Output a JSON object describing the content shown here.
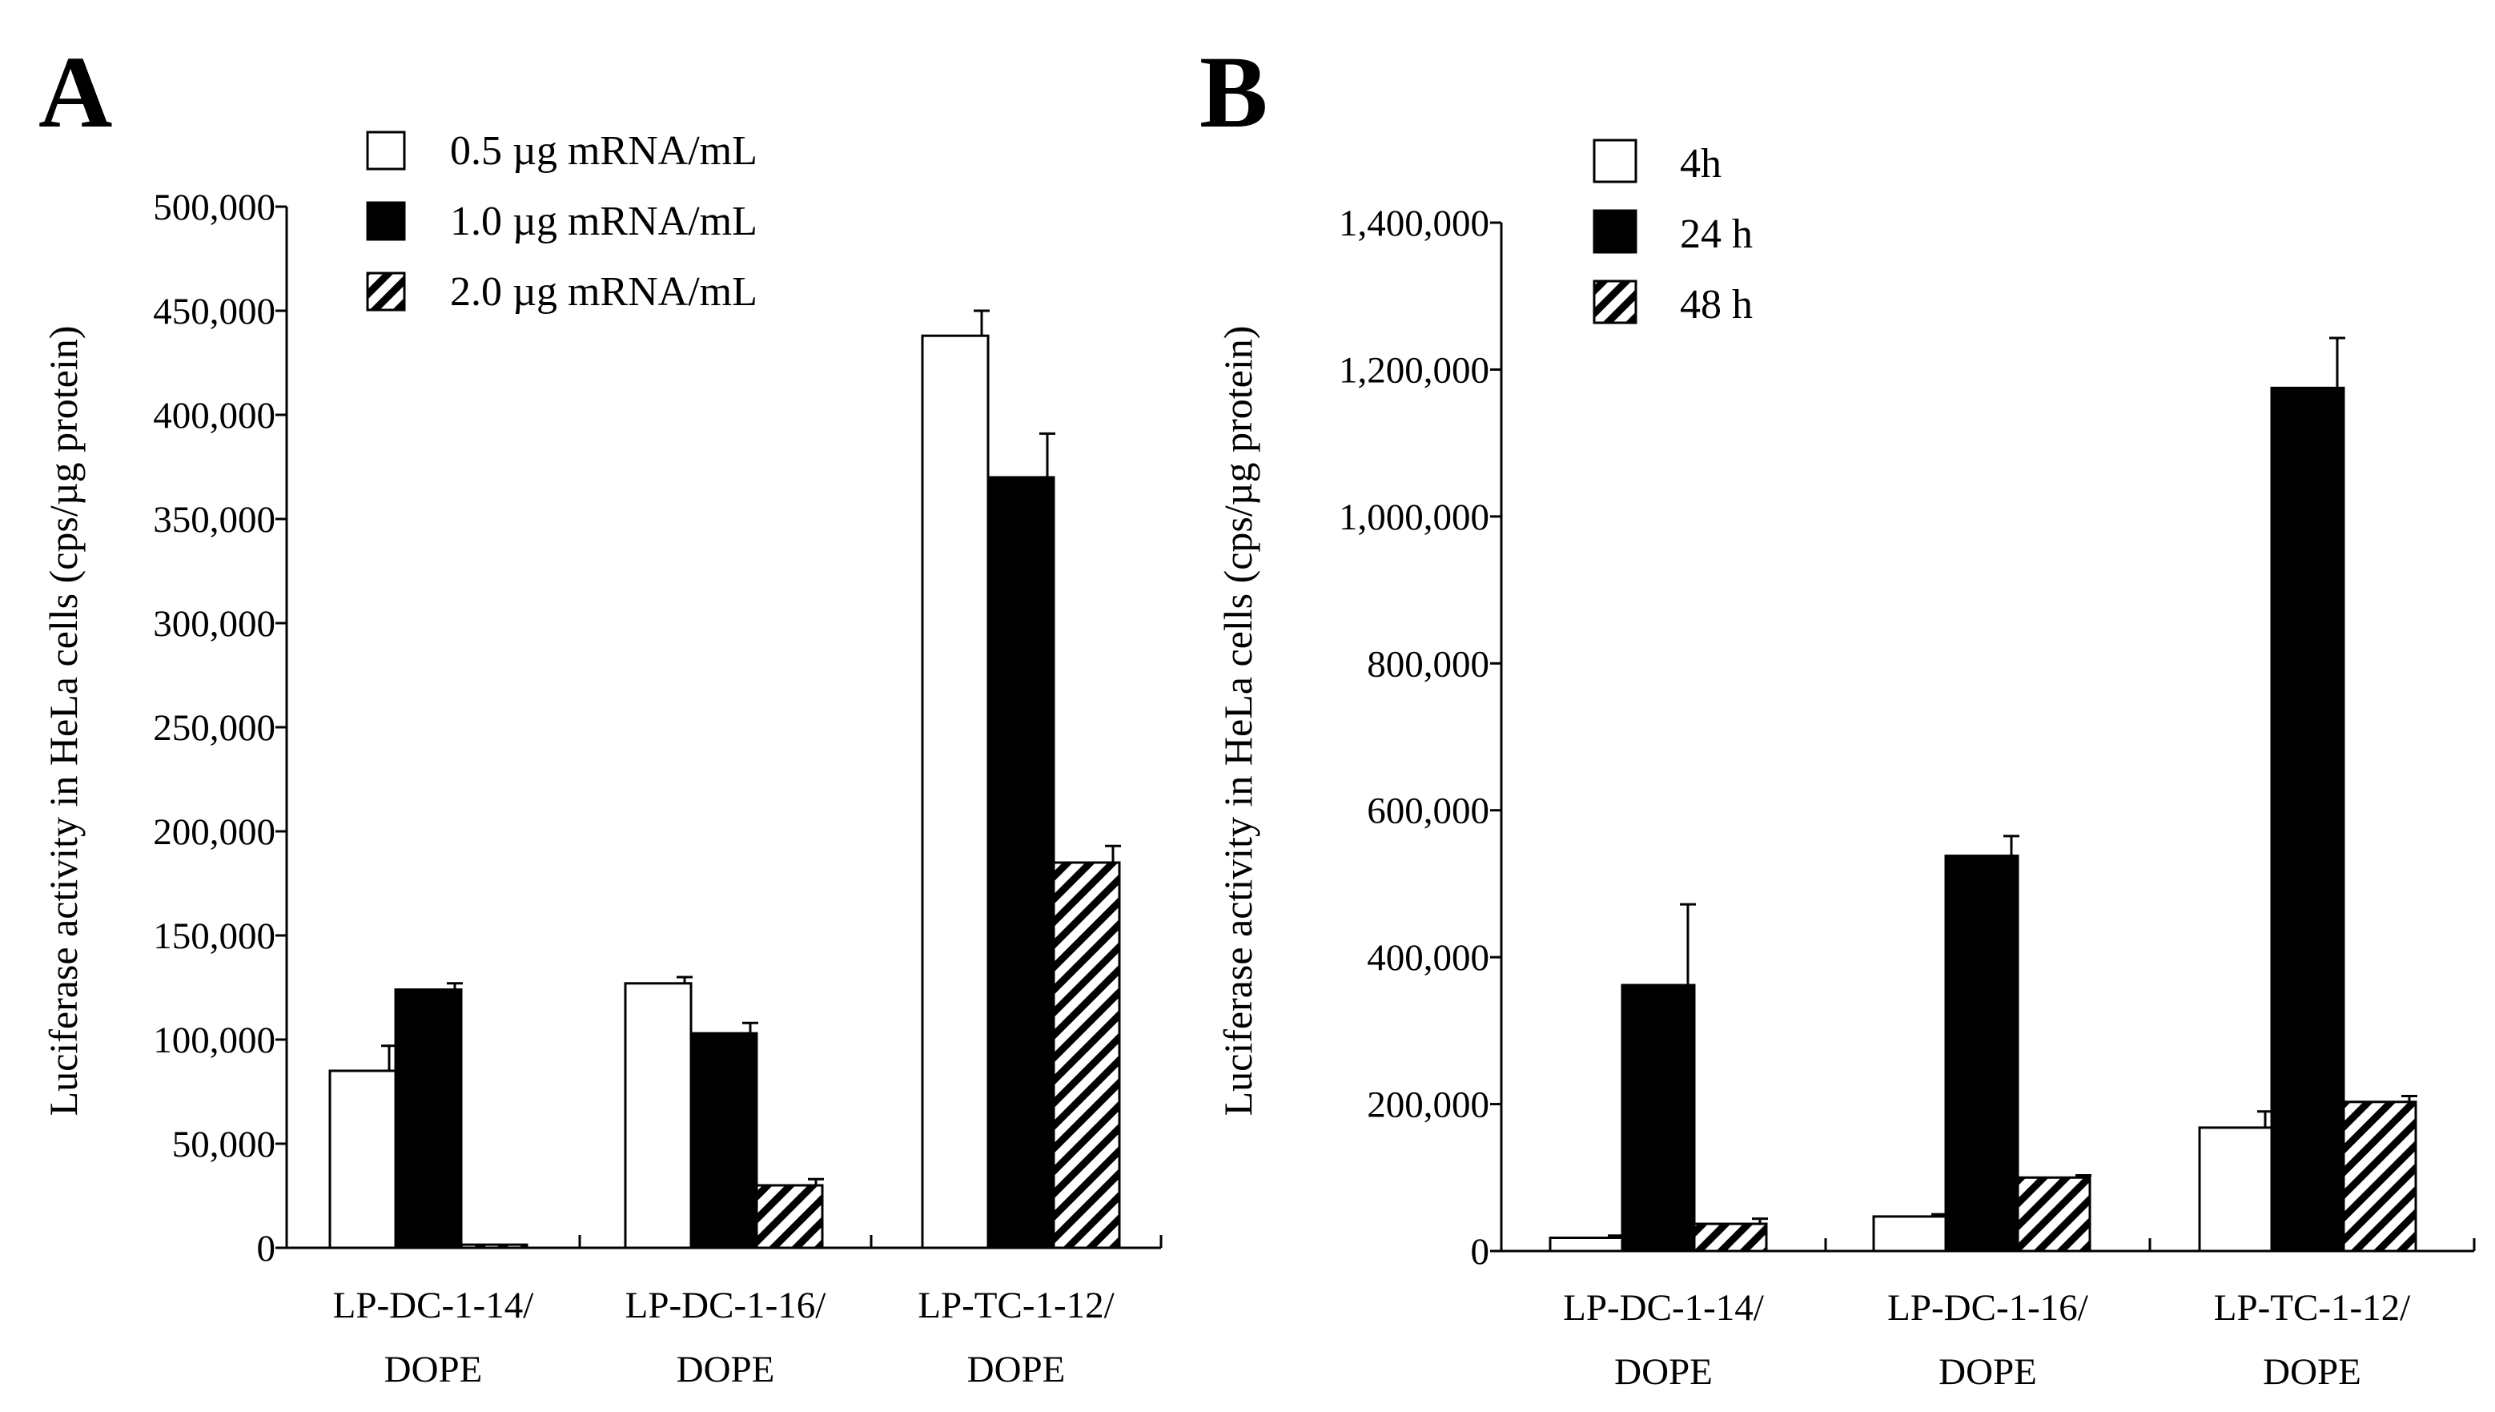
{
  "chart_data": [
    {
      "panel": "A",
      "type": "bar",
      "title": "",
      "xlabel": "",
      "ylabel": "Luciferase  activity  in HeLa cells  (cps/µg protein)",
      "ylim": [
        0,
        500000
      ],
      "yticks": [
        {
          "value": 0,
          "label": "0"
        },
        {
          "value": 50000,
          "label": "50,000"
        },
        {
          "value": 100000,
          "label": "100,000"
        },
        {
          "value": 150000,
          "label": "150,000"
        },
        {
          "value": 200000,
          "label": "200,000"
        },
        {
          "value": 250000,
          "label": "250,000"
        },
        {
          "value": 300000,
          "label": "300,000"
        },
        {
          "value": 350000,
          "label": "350,000"
        },
        {
          "value": 400000,
          "label": "400,000"
        },
        {
          "value": 450000,
          "label": "450,000"
        },
        {
          "value": 500000,
          "label": "500,000"
        }
      ],
      "categories": [
        {
          "line1": "LP-DC-1-14/",
          "line2": "DOPE"
        },
        {
          "line1": "LP-DC-1-16/",
          "line2": "DOPE"
        },
        {
          "line1": "LP-TC-1-12/",
          "line2": "DOPE"
        }
      ],
      "legend_position": "top-center",
      "series": [
        {
          "name": "0.5 µg mRNA/mL",
          "fill": "white",
          "values": [
            85000,
            127000,
            438000
          ],
          "errors": [
            12000,
            3000,
            12000
          ]
        },
        {
          "name": "1.0 µg mRNA/mL",
          "fill": "black",
          "values": [
            124000,
            103000,
            370000
          ],
          "errors": [
            3000,
            5000,
            21000
          ]
        },
        {
          "name": "2.0 µg mRNA/mL",
          "fill": "hatch",
          "values": [
            1500,
            30000,
            185000
          ],
          "errors": [
            0,
            3000,
            8000
          ]
        }
      ]
    },
    {
      "panel": "B",
      "type": "bar",
      "title": "",
      "xlabel": "",
      "ylabel": "Luciferase  activity  in HeLa cells  (cps/µg protein)",
      "ylim": [
        0,
        1400000
      ],
      "yticks": [
        {
          "value": 0,
          "label": "0"
        },
        {
          "value": 200000,
          "label": "200,000"
        },
        {
          "value": 400000,
          "label": "400,000"
        },
        {
          "value": 600000,
          "label": "600,000"
        },
        {
          "value": 800000,
          "label": "800,000"
        },
        {
          "value": 1000000,
          "label": "1,000,000"
        },
        {
          "value": 1200000,
          "label": "1,200,000"
        },
        {
          "value": 1400000,
          "label": "1,400,000"
        }
      ],
      "categories": [
        {
          "line1": "LP-DC-1-14/",
          "line2": "DOPE"
        },
        {
          "line1": "LP-DC-1-16/",
          "line2": "DOPE"
        },
        {
          "line1": "LP-TC-1-12/",
          "line2": "DOPE"
        }
      ],
      "legend_position": "top-left",
      "series": [
        {
          "name": "4h",
          "fill": "white",
          "values": [
            18000,
            47000,
            168000
          ],
          "errors": [
            3000,
            3000,
            22000
          ]
        },
        {
          "name": "24 h",
          "fill": "black",
          "values": [
            362000,
            538000,
            1175000
          ],
          "errors": [
            110000,
            27000,
            68000
          ]
        },
        {
          "name": "48 h",
          "fill": "hatch",
          "values": [
            37000,
            100000,
            203000
          ],
          "errors": [
            7000,
            3000,
            8000
          ]
        }
      ]
    }
  ]
}
